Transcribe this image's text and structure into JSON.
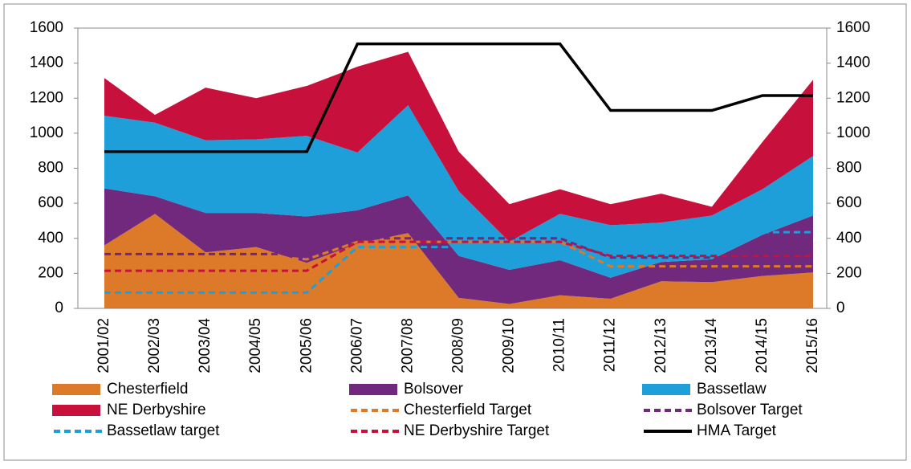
{
  "chart_data": {
    "type": "area",
    "categories": [
      "2001/02",
      "2002/03",
      "2003/04",
      "2004/05",
      "2005/06",
      "2006/07",
      "2007/08",
      "2008/09",
      "2009/10",
      "2010/11",
      "2011/12",
      "2012/13",
      "2013/14",
      "2014/15",
      "2015/16"
    ],
    "ylim": [
      0,
      1600
    ],
    "yticks": [
      0,
      200,
      400,
      600,
      800,
      1000,
      1200,
      1400,
      1600
    ],
    "y2lim": [
      0,
      1600
    ],
    "y2ticks": [
      0,
      200,
      400,
      600,
      800,
      1000,
      1200,
      1400,
      1600
    ],
    "series": [
      {
        "name": "Chesterfield",
        "type": "area",
        "color": "#dc7a2a",
        "values": [
          360,
          540,
          320,
          350,
          260,
          370,
          430,
          60,
          25,
          75,
          55,
          155,
          150,
          185,
          205
        ]
      },
      {
        "name": "Bolsover",
        "type": "area",
        "color": "#70297c",
        "values": [
          325,
          100,
          225,
          195,
          265,
          190,
          215,
          240,
          195,
          200,
          120,
          110,
          130,
          235,
          325
        ]
      },
      {
        "name": "Bassetlaw",
        "type": "area",
        "color": "#1e9fd9",
        "values": [
          415,
          420,
          415,
          420,
          460,
          330,
          515,
          370,
          160,
          265,
          300,
          225,
          250,
          260,
          340
        ]
      },
      {
        "name": "NE Derbyshire",
        "type": "area",
        "color": "#c8103c",
        "values": [
          215,
          45,
          300,
          235,
          285,
          490,
          305,
          225,
          215,
          140,
          120,
          165,
          50,
          270,
          435
        ]
      },
      {
        "name": "Chesterfield Target",
        "type": "line",
        "dash": true,
        "color": "#dc7a2a",
        "values": [
          300,
          300,
          300,
          300,
          280,
          380,
          380,
          380,
          380,
          380,
          240,
          240,
          240,
          240,
          240
        ]
      },
      {
        "name": "Bolsover Target",
        "type": "line",
        "dash": true,
        "color": "#70297c",
        "values": [
          310,
          310,
          310,
          310,
          310,
          400,
          400,
          400,
          400,
          400,
          290,
          290,
          290,
          290,
          290
        ]
      },
      {
        "name": "Bassetlaw target",
        "type": "line",
        "dash": true,
        "color": "#1e9fd9",
        "values": [
          90,
          90,
          90,
          90,
          90,
          350,
          350,
          350,
          350,
          350,
          null,
          null,
          null,
          435,
          435
        ]
      },
      {
        "name": "NE Derbyshire Target",
        "type": "line",
        "dash": true,
        "color": "#c8103c",
        "values": [
          215,
          215,
          215,
          215,
          215,
          380,
          380,
          380,
          380,
          380,
          300,
          300,
          300,
          300,
          300
        ]
      },
      {
        "name": "HMA Target",
        "type": "line",
        "dash": false,
        "axis": "y2",
        "color": "#000000",
        "values": [
          895,
          895,
          895,
          895,
          895,
          1510,
          1510,
          1510,
          1510,
          1510,
          1130,
          1130,
          1130,
          1215,
          1215
        ]
      }
    ]
  }
}
